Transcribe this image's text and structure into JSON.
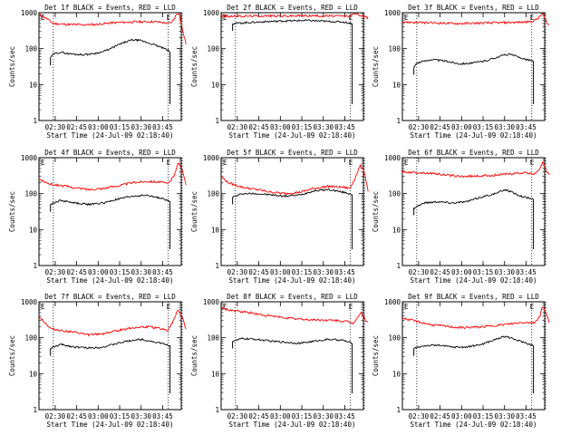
{
  "chart_data": {
    "type": "line",
    "yscale": "log",
    "ylim": [
      1,
      1000
    ],
    "xlim": [
      "02:18:40",
      "03:58:00"
    ],
    "ylabel": "Counts/sec",
    "xlabel": "Start Time (24-Jul-09 02:18:40)",
    "xticks": [
      "02:30",
      "02:45",
      "03:00",
      "03:15",
      "03:30",
      "03:45"
    ],
    "yticks": [
      "1",
      "10",
      "100",
      "1000"
    ],
    "flag_label": "E",
    "colors": {
      "events": "#000000",
      "lld": "#ff0000"
    },
    "panels": [
      {
        "title": "Det 1f BLACK = Events, RED = LLD",
        "events_start_min": 8,
        "events_end_min": 91.5,
        "dotted_min": [
          10,
          90.3,
          100
        ],
        "events": [
          [
            8,
            55
          ],
          [
            10,
            70
          ],
          [
            15,
            80
          ],
          [
            20,
            73
          ],
          [
            25,
            70
          ],
          [
            30,
            68
          ],
          [
            35,
            70
          ],
          [
            40,
            75
          ],
          [
            45,
            83
          ],
          [
            50,
            100
          ],
          [
            55,
            125
          ],
          [
            60,
            150
          ],
          [
            65,
            175
          ],
          [
            70,
            170
          ],
          [
            75,
            150
          ],
          [
            80,
            130
          ],
          [
            85,
            110
          ],
          [
            90,
            90
          ],
          [
            91.5,
            80
          ]
        ],
        "lld": [
          [
            0,
            900
          ],
          [
            5,
            700
          ],
          [
            10,
            500
          ],
          [
            20,
            470
          ],
          [
            30,
            460
          ],
          [
            40,
            470
          ],
          [
            50,
            520
          ],
          [
            60,
            540
          ],
          [
            70,
            560
          ],
          [
            80,
            560
          ],
          [
            85,
            540
          ],
          [
            90,
            500
          ],
          [
            93,
            550
          ],
          [
            96,
            900
          ],
          [
            98,
            1000
          ],
          [
            100,
            350
          ],
          [
            103,
            120
          ]
        ]
      },
      {
        "title": "Det 2f BLACK = Events, RED = LLD",
        "events_start_min": 8,
        "events_end_min": 91.5,
        "dotted_min": [
          10,
          90.3,
          100
        ],
        "events": [
          [
            8,
            500
          ],
          [
            15,
            520
          ],
          [
            30,
            560
          ],
          [
            45,
            590
          ],
          [
            60,
            610
          ],
          [
            75,
            570
          ],
          [
            85,
            550
          ],
          [
            91.5,
            500
          ]
        ],
        "lld": [
          [
            0,
            800
          ],
          [
            15,
            800
          ],
          [
            30,
            820
          ],
          [
            45,
            810
          ],
          [
            60,
            830
          ],
          [
            75,
            810
          ],
          [
            90,
            800
          ],
          [
            94,
            1000
          ],
          [
            98,
            800
          ],
          [
            103,
            700
          ]
        ]
      },
      {
        "title": "Det 3f BLACK = Events, RED = LLD",
        "events_start_min": 8,
        "events_end_min": 91.5,
        "dotted_min": [
          10,
          90.3,
          100
        ],
        "events": [
          [
            8,
            30
          ],
          [
            10,
            40
          ],
          [
            20,
            50
          ],
          [
            30,
            45
          ],
          [
            40,
            38
          ],
          [
            50,
            40
          ],
          [
            60,
            48
          ],
          [
            70,
            65
          ],
          [
            75,
            70
          ],
          [
            80,
            60
          ],
          [
            85,
            52
          ],
          [
            91.5,
            45
          ]
        ],
        "lld": [
          [
            0,
            550
          ],
          [
            20,
            520
          ],
          [
            40,
            500
          ],
          [
            60,
            520
          ],
          [
            80,
            540
          ],
          [
            90,
            560
          ],
          [
            95,
            700
          ],
          [
            98,
            1000
          ],
          [
            101,
            500
          ],
          [
            103,
            450
          ]
        ]
      },
      {
        "title": "Det 4f BLACK = Events, RED = LLD",
        "events_start_min": 8,
        "events_end_min": 91.5,
        "dotted_min": [
          10,
          90.3,
          100
        ],
        "events": [
          [
            8,
            50
          ],
          [
            15,
            65
          ],
          [
            25,
            55
          ],
          [
            35,
            50
          ],
          [
            45,
            55
          ],
          [
            55,
            70
          ],
          [
            65,
            85
          ],
          [
            75,
            90
          ],
          [
            85,
            75
          ],
          [
            91.5,
            60
          ]
        ],
        "lld": [
          [
            0,
            250
          ],
          [
            8,
            180
          ],
          [
            15,
            170
          ],
          [
            25,
            145
          ],
          [
            35,
            130
          ],
          [
            45,
            140
          ],
          [
            55,
            165
          ],
          [
            65,
            200
          ],
          [
            75,
            220
          ],
          [
            85,
            210
          ],
          [
            90,
            190
          ],
          [
            94,
            300
          ],
          [
            97,
            700
          ],
          [
            100,
            500
          ],
          [
            103,
            150
          ]
        ]
      },
      {
        "title": "Det 5f BLACK = Events, RED = LLD",
        "events_start_min": 8,
        "events_end_min": 91.5,
        "dotted_min": [
          10,
          90.3,
          100
        ],
        "events": [
          [
            8,
            80
          ],
          [
            15,
            100
          ],
          [
            25,
            100
          ],
          [
            35,
            92
          ],
          [
            45,
            85
          ],
          [
            55,
            92
          ],
          [
            65,
            120
          ],
          [
            75,
            130
          ],
          [
            85,
            110
          ],
          [
            91.5,
            95
          ]
        ],
        "lld": [
          [
            0,
            300
          ],
          [
            5,
            200
          ],
          [
            15,
            150
          ],
          [
            25,
            130
          ],
          [
            35,
            110
          ],
          [
            45,
            100
          ],
          [
            55,
            110
          ],
          [
            65,
            140
          ],
          [
            75,
            160
          ],
          [
            85,
            150
          ],
          [
            90,
            140
          ],
          [
            94,
            300
          ],
          [
            97,
            600
          ],
          [
            100,
            400
          ],
          [
            103,
            100
          ]
        ]
      },
      {
        "title": "Det 6f BLACK = Events, RED = LLD",
        "events_start_min": 8,
        "events_end_min": 91.5,
        "dotted_min": [
          10,
          90.3,
          100
        ],
        "events": [
          [
            8,
            40
          ],
          [
            15,
            55
          ],
          [
            25,
            60
          ],
          [
            35,
            55
          ],
          [
            45,
            60
          ],
          [
            55,
            80
          ],
          [
            65,
            100
          ],
          [
            72,
            130
          ],
          [
            80,
            95
          ],
          [
            85,
            80
          ],
          [
            91.5,
            70
          ]
        ],
        "lld": [
          [
            0,
            400
          ],
          [
            20,
            370
          ],
          [
            40,
            300
          ],
          [
            55,
            310
          ],
          [
            70,
            340
          ],
          [
            85,
            380
          ],
          [
            92,
            350
          ],
          [
            96,
            500
          ],
          [
            98,
            800
          ],
          [
            101,
            400
          ],
          [
            103,
            300
          ]
        ]
      },
      {
        "title": "Det 7f BLACK = Events, RED = LLD",
        "events_start_min": 8,
        "events_end_min": 91.5,
        "dotted_min": [
          10,
          90.3,
          100
        ],
        "events": [
          [
            8,
            50
          ],
          [
            15,
            65
          ],
          [
            25,
            55
          ],
          [
            35,
            52
          ],
          [
            45,
            55
          ],
          [
            55,
            70
          ],
          [
            65,
            85
          ],
          [
            72,
            90
          ],
          [
            85,
            70
          ],
          [
            91.5,
            60
          ]
        ],
        "lld": [
          [
            0,
            400
          ],
          [
            8,
            180
          ],
          [
            15,
            160
          ],
          [
            25,
            140
          ],
          [
            35,
            120
          ],
          [
            45,
            130
          ],
          [
            55,
            160
          ],
          [
            65,
            190
          ],
          [
            75,
            200
          ],
          [
            85,
            180
          ],
          [
            90,
            160
          ],
          [
            94,
            300
          ],
          [
            97,
            600
          ],
          [
            100,
            400
          ],
          [
            103,
            150
          ]
        ]
      },
      {
        "title": "Det 8f BLACK = Events, RED = LLD",
        "events_start_min": 8,
        "events_end_min": 91.5,
        "dotted_min": [
          10,
          90.3,
          100
        ],
        "events": [
          [
            8,
            80
          ],
          [
            15,
            95
          ],
          [
            25,
            90
          ],
          [
            35,
            80
          ],
          [
            45,
            75
          ],
          [
            55,
            70
          ],
          [
            65,
            80
          ],
          [
            75,
            90
          ],
          [
            85,
            85
          ],
          [
            91.5,
            70
          ]
        ],
        "lld": [
          [
            0,
            650
          ],
          [
            10,
            550
          ],
          [
            20,
            500
          ],
          [
            30,
            420
          ],
          [
            40,
            380
          ],
          [
            50,
            340
          ],
          [
            60,
            320
          ],
          [
            70,
            310
          ],
          [
            80,
            300
          ],
          [
            88,
            280
          ],
          [
            92,
            250
          ],
          [
            96,
            400
          ],
          [
            98,
            500
          ],
          [
            101,
            300
          ],
          [
            103,
            280
          ]
        ]
      },
      {
        "title": "Det 9f BLACK = Events, RED = LLD",
        "events_start_min": 8,
        "events_end_min": 91.5,
        "dotted_min": [
          10,
          90.3,
          100
        ],
        "events": [
          [
            8,
            50
          ],
          [
            15,
            60
          ],
          [
            25,
            62
          ],
          [
            35,
            55
          ],
          [
            45,
            55
          ],
          [
            55,
            65
          ],
          [
            65,
            90
          ],
          [
            72,
            110
          ],
          [
            80,
            85
          ],
          [
            85,
            75
          ],
          [
            91.5,
            60
          ]
        ],
        "lld": [
          [
            0,
            350
          ],
          [
            20,
            230
          ],
          [
            40,
            190
          ],
          [
            55,
            200
          ],
          [
            70,
            230
          ],
          [
            85,
            270
          ],
          [
            92,
            260
          ],
          [
            96,
            400
          ],
          [
            98,
            800
          ],
          [
            101,
            400
          ],
          [
            103,
            250
          ]
        ]
      }
    ]
  }
}
